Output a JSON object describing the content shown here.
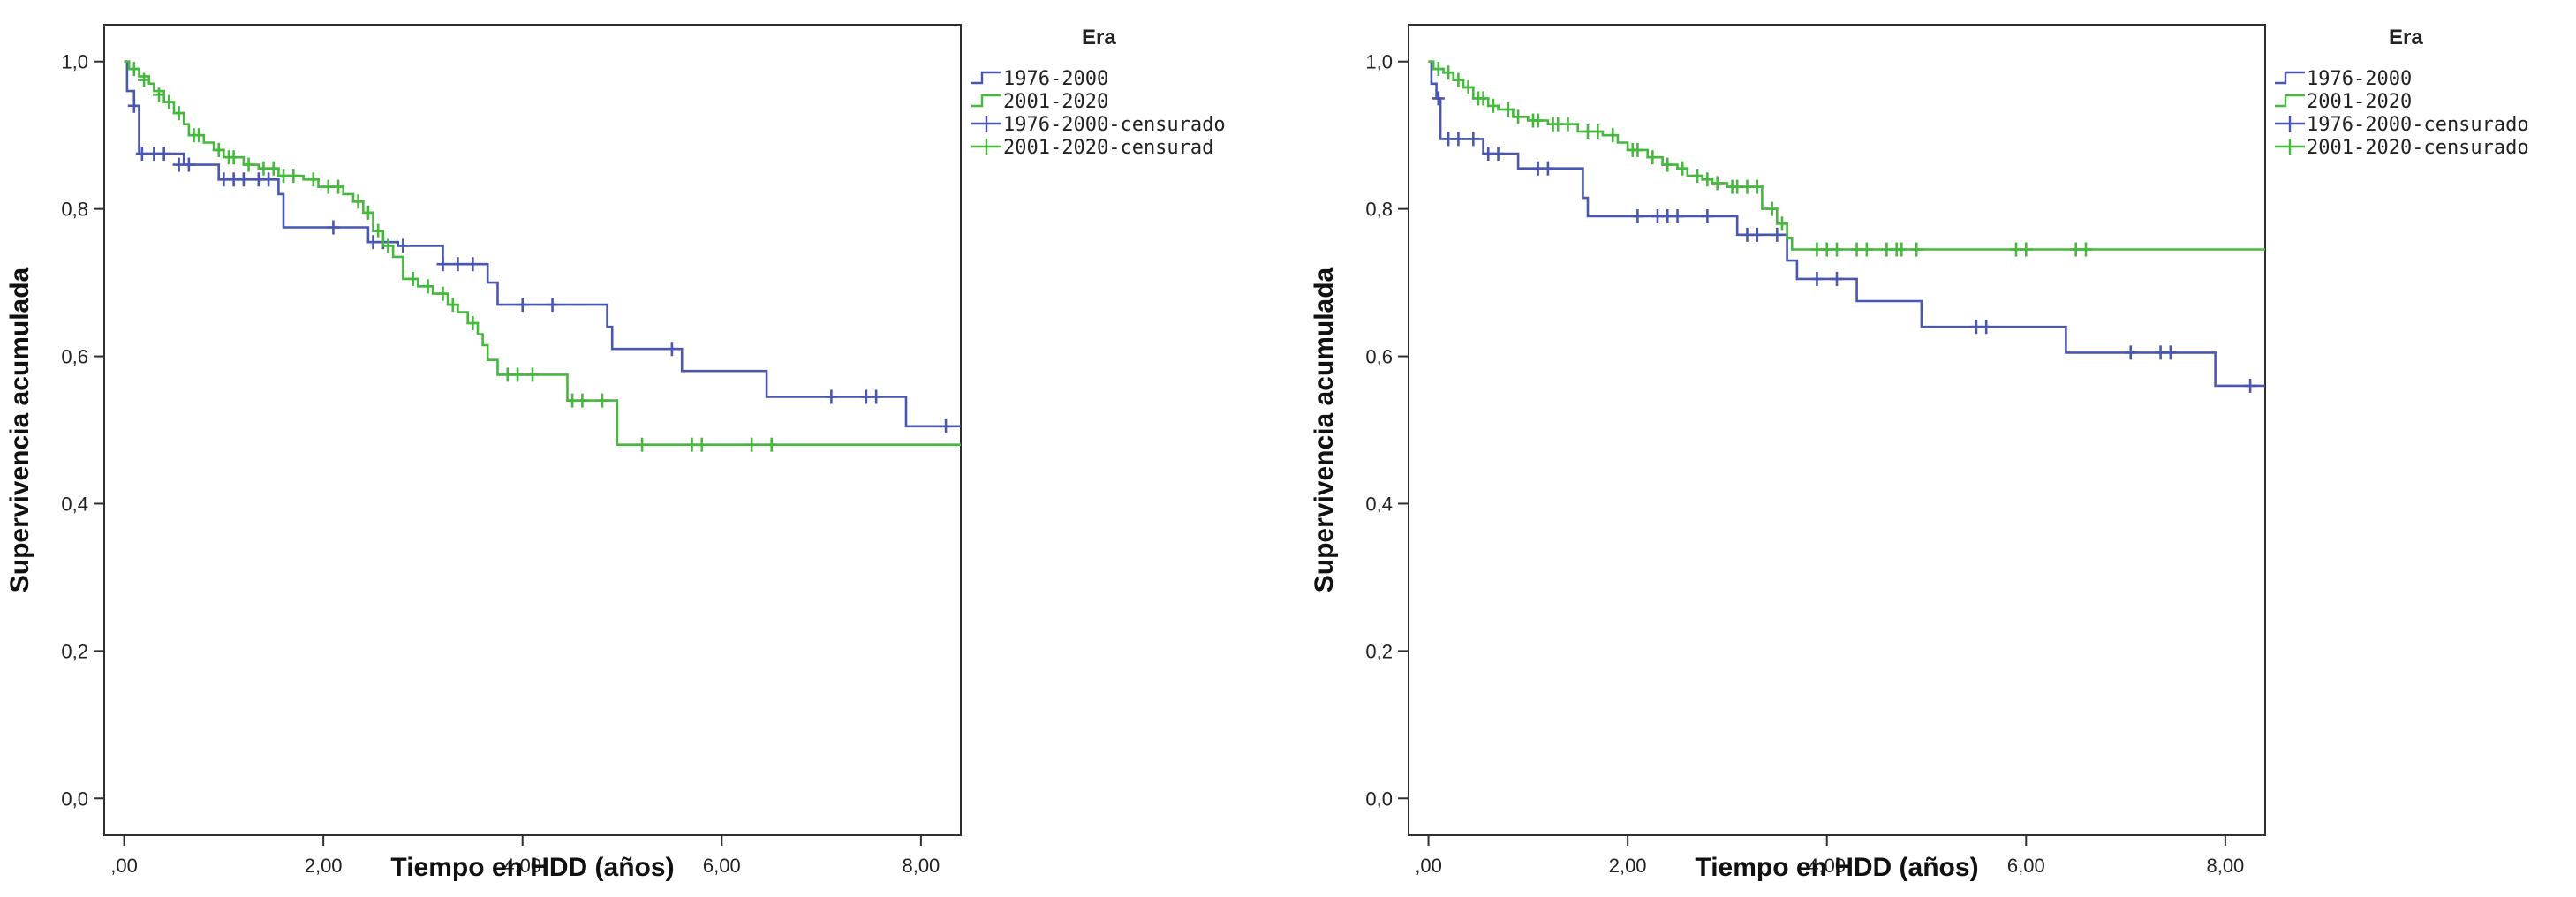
{
  "chart_data": [
    {
      "type": "line",
      "step": true,
      "title": "",
      "xlabel": "Tiempo en HDD (años)",
      "ylabel": "Supervivencia acumulada",
      "xlim": [
        -0.2,
        8.4
      ],
      "ylim": [
        -0.05,
        1.05
      ],
      "x_ticks": [
        0,
        2,
        4,
        6,
        8
      ],
      "x_tick_labels": [
        ",00",
        "2,00",
        "4,00",
        "6,00",
        "8,00"
      ],
      "y_ticks": [
        0,
        0.2,
        0.4,
        0.6,
        0.8,
        1.0
      ],
      "y_tick_labels": [
        "0,0",
        "0,2",
        "0,4",
        "0,6",
        "0,8",
        "1,0"
      ],
      "grid": false,
      "legend": {
        "title": "Era",
        "placement": "right-outside-top",
        "entries": [
          "1976-2000",
          "2001-2020",
          "1976-2000-censurado",
          "2001-2020-censurad"
        ]
      },
      "series": [
        {
          "name": "1976-2000",
          "color": "#4a57b0",
          "steps": [
            [
              0,
              1.0
            ],
            [
              0.03,
              0.96
            ],
            [
              0.1,
              0.94
            ],
            [
              0.15,
              0.875
            ],
            [
              0.6,
              0.86
            ],
            [
              0.95,
              0.84
            ],
            [
              1.55,
              0.82
            ],
            [
              1.6,
              0.775
            ],
            [
              2.45,
              0.755
            ],
            [
              2.75,
              0.75
            ],
            [
              3.2,
              0.725
            ],
            [
              3.65,
              0.7
            ],
            [
              3.75,
              0.67
            ],
            [
              4.85,
              0.64
            ],
            [
              4.9,
              0.61
            ],
            [
              5.6,
              0.58
            ],
            [
              6.45,
              0.545
            ],
            [
              7.85,
              0.505
            ],
            [
              8.4,
              0.505
            ]
          ],
          "censored": [
            [
              0.1,
              0.94
            ],
            [
              0.18,
              0.875
            ],
            [
              0.3,
              0.875
            ],
            [
              0.4,
              0.875
            ],
            [
              0.55,
              0.86
            ],
            [
              0.65,
              0.86
            ],
            [
              1.0,
              0.84
            ],
            [
              1.1,
              0.84
            ],
            [
              1.2,
              0.84
            ],
            [
              1.35,
              0.84
            ],
            [
              1.45,
              0.84
            ],
            [
              2.1,
              0.775
            ],
            [
              2.5,
              0.755
            ],
            [
              2.6,
              0.755
            ],
            [
              2.8,
              0.75
            ],
            [
              3.2,
              0.725
            ],
            [
              3.35,
              0.725
            ],
            [
              3.5,
              0.725
            ],
            [
              4.0,
              0.67
            ],
            [
              4.3,
              0.67
            ],
            [
              5.5,
              0.61
            ],
            [
              7.1,
              0.545
            ],
            [
              7.45,
              0.545
            ],
            [
              7.55,
              0.545
            ],
            [
              8.25,
              0.505
            ]
          ]
        },
        {
          "name": "2001-2020",
          "color": "#46b83e",
          "steps": [
            [
              0,
              1.0
            ],
            [
              0.05,
              0.99
            ],
            [
              0.15,
              0.98
            ],
            [
              0.25,
              0.97
            ],
            [
              0.3,
              0.96
            ],
            [
              0.4,
              0.945
            ],
            [
              0.5,
              0.93
            ],
            [
              0.6,
              0.915
            ],
            [
              0.65,
              0.9
            ],
            [
              0.8,
              0.89
            ],
            [
              0.9,
              0.88
            ],
            [
              1.0,
              0.87
            ],
            [
              1.2,
              0.86
            ],
            [
              1.35,
              0.855
            ],
            [
              1.55,
              0.845
            ],
            [
              1.8,
              0.84
            ],
            [
              1.95,
              0.83
            ],
            [
              2.2,
              0.82
            ],
            [
              2.3,
              0.81
            ],
            [
              2.4,
              0.795
            ],
            [
              2.5,
              0.77
            ],
            [
              2.6,
              0.75
            ],
            [
              2.7,
              0.735
            ],
            [
              2.8,
              0.705
            ],
            [
              2.95,
              0.695
            ],
            [
              3.1,
              0.685
            ],
            [
              3.25,
              0.67
            ],
            [
              3.35,
              0.66
            ],
            [
              3.45,
              0.645
            ],
            [
              3.55,
              0.63
            ],
            [
              3.6,
              0.615
            ],
            [
              3.65,
              0.595
            ],
            [
              3.75,
              0.575
            ],
            [
              4.45,
              0.54
            ],
            [
              4.95,
              0.48
            ],
            [
              8.4,
              0.48
            ]
          ],
          "censored": [
            [
              0.1,
              0.99
            ],
            [
              0.2,
              0.975
            ],
            [
              0.35,
              0.955
            ],
            [
              0.45,
              0.945
            ],
            [
              0.55,
              0.93
            ],
            [
              0.7,
              0.9
            ],
            [
              0.75,
              0.9
            ],
            [
              0.95,
              0.88
            ],
            [
              1.05,
              0.87
            ],
            [
              1.1,
              0.87
            ],
            [
              1.25,
              0.86
            ],
            [
              1.4,
              0.855
            ],
            [
              1.5,
              0.855
            ],
            [
              1.6,
              0.845
            ],
            [
              1.7,
              0.845
            ],
            [
              1.9,
              0.84
            ],
            [
              2.05,
              0.83
            ],
            [
              2.15,
              0.83
            ],
            [
              2.35,
              0.81
            ],
            [
              2.45,
              0.795
            ],
            [
              2.55,
              0.77
            ],
            [
              2.65,
              0.75
            ],
            [
              2.9,
              0.705
            ],
            [
              3.05,
              0.695
            ],
            [
              3.2,
              0.685
            ],
            [
              3.3,
              0.67
            ],
            [
              3.5,
              0.645
            ],
            [
              3.85,
              0.575
            ],
            [
              3.95,
              0.575
            ],
            [
              4.1,
              0.575
            ],
            [
              4.5,
              0.54
            ],
            [
              4.6,
              0.54
            ],
            [
              4.8,
              0.54
            ],
            [
              5.2,
              0.48
            ],
            [
              5.7,
              0.48
            ],
            [
              5.8,
              0.48
            ],
            [
              6.3,
              0.48
            ],
            [
              6.5,
              0.48
            ]
          ]
        }
      ]
    },
    {
      "type": "line",
      "step": true,
      "title": "",
      "xlabel": "Tiempo en HDD (años)",
      "ylabel": "Supervivencia acumulada",
      "xlim": [
        -0.2,
        8.4
      ],
      "ylim": [
        -0.05,
        1.05
      ],
      "x_ticks": [
        0,
        2,
        4,
        6,
        8
      ],
      "x_tick_labels": [
        ",00",
        "2,00",
        "4,00",
        "6,00",
        "8,00"
      ],
      "y_ticks": [
        0,
        0.2,
        0.4,
        0.6,
        0.8,
        1.0
      ],
      "y_tick_labels": [
        "0,0",
        "0,2",
        "0,4",
        "0,6",
        "0,8",
        "1,0"
      ],
      "grid": false,
      "legend": {
        "title": "Era",
        "placement": "right-outside-top",
        "entries": [
          "1976-2000",
          "2001-2020",
          "1976-2000-censurado",
          "2001-2020-censurado"
        ]
      },
      "series": [
        {
          "name": "1976-2000",
          "color": "#4a57b0",
          "steps": [
            [
              0,
              1.0
            ],
            [
              0.03,
              0.97
            ],
            [
              0.08,
              0.95
            ],
            [
              0.12,
              0.895
            ],
            [
              0.55,
              0.875
            ],
            [
              0.9,
              0.855
            ],
            [
              1.55,
              0.815
            ],
            [
              1.6,
              0.79
            ],
            [
              3.1,
              0.765
            ],
            [
              3.6,
              0.73
            ],
            [
              3.7,
              0.705
            ],
            [
              4.3,
              0.675
            ],
            [
              4.95,
              0.64
            ],
            [
              6.4,
              0.605
            ],
            [
              7.9,
              0.56
            ],
            [
              8.4,
              0.56
            ]
          ],
          "censored": [
            [
              0.1,
              0.95
            ],
            [
              0.2,
              0.895
            ],
            [
              0.3,
              0.895
            ],
            [
              0.45,
              0.895
            ],
            [
              0.6,
              0.875
            ],
            [
              0.7,
              0.875
            ],
            [
              1.1,
              0.855
            ],
            [
              1.2,
              0.855
            ],
            [
              2.1,
              0.79
            ],
            [
              2.3,
              0.79
            ],
            [
              2.4,
              0.79
            ],
            [
              2.5,
              0.79
            ],
            [
              2.8,
              0.79
            ],
            [
              3.2,
              0.765
            ],
            [
              3.3,
              0.765
            ],
            [
              3.5,
              0.765
            ],
            [
              3.9,
              0.705
            ],
            [
              4.1,
              0.705
            ],
            [
              5.5,
              0.64
            ],
            [
              5.6,
              0.64
            ],
            [
              7.05,
              0.605
            ],
            [
              7.35,
              0.605
            ],
            [
              7.45,
              0.605
            ],
            [
              8.25,
              0.56
            ]
          ]
        },
        {
          "name": "2001-2020",
          "color": "#46b83e",
          "steps": [
            [
              0,
              1.0
            ],
            [
              0.05,
              0.99
            ],
            [
              0.15,
              0.985
            ],
            [
              0.25,
              0.975
            ],
            [
              0.35,
              0.965
            ],
            [
              0.45,
              0.95
            ],
            [
              0.6,
              0.94
            ],
            [
              0.7,
              0.935
            ],
            [
              0.85,
              0.925
            ],
            [
              1.0,
              0.92
            ],
            [
              1.2,
              0.915
            ],
            [
              1.5,
              0.905
            ],
            [
              1.75,
              0.9
            ],
            [
              1.9,
              0.89
            ],
            [
              2.0,
              0.88
            ],
            [
              2.2,
              0.87
            ],
            [
              2.35,
              0.86
            ],
            [
              2.5,
              0.855
            ],
            [
              2.6,
              0.845
            ],
            [
              2.75,
              0.84
            ],
            [
              2.85,
              0.835
            ],
            [
              3.0,
              0.83
            ],
            [
              3.35,
              0.8
            ],
            [
              3.5,
              0.78
            ],
            [
              3.6,
              0.76
            ],
            [
              3.65,
              0.745
            ],
            [
              8.4,
              0.745
            ]
          ],
          "censored": [
            [
              0.1,
              0.99
            ],
            [
              0.2,
              0.985
            ],
            [
              0.3,
              0.975
            ],
            [
              0.4,
              0.965
            ],
            [
              0.5,
              0.95
            ],
            [
              0.55,
              0.95
            ],
            [
              0.65,
              0.94
            ],
            [
              0.8,
              0.935
            ],
            [
              0.9,
              0.925
            ],
            [
              1.05,
              0.92
            ],
            [
              1.1,
              0.92
            ],
            [
              1.25,
              0.915
            ],
            [
              1.3,
              0.915
            ],
            [
              1.4,
              0.915
            ],
            [
              1.6,
              0.905
            ],
            [
              1.7,
              0.905
            ],
            [
              1.85,
              0.9
            ],
            [
              2.05,
              0.88
            ],
            [
              2.1,
              0.88
            ],
            [
              2.25,
              0.87
            ],
            [
              2.4,
              0.86
            ],
            [
              2.55,
              0.855
            ],
            [
              2.7,
              0.845
            ],
            [
              2.8,
              0.84
            ],
            [
              2.9,
              0.835
            ],
            [
              3.05,
              0.83
            ],
            [
              3.1,
              0.83
            ],
            [
              3.2,
              0.83
            ],
            [
              3.3,
              0.83
            ],
            [
              3.45,
              0.8
            ],
            [
              3.55,
              0.78
            ],
            [
              3.9,
              0.745
            ],
            [
              4.0,
              0.745
            ],
            [
              4.1,
              0.745
            ],
            [
              4.3,
              0.745
            ],
            [
              4.4,
              0.745
            ],
            [
              4.6,
              0.745
            ],
            [
              4.7,
              0.745
            ],
            [
              4.75,
              0.745
            ],
            [
              4.9,
              0.745
            ],
            [
              5.9,
              0.745
            ],
            [
              6.0,
              0.745
            ],
            [
              6.5,
              0.745
            ],
            [
              6.6,
              0.745
            ]
          ]
        }
      ]
    }
  ]
}
